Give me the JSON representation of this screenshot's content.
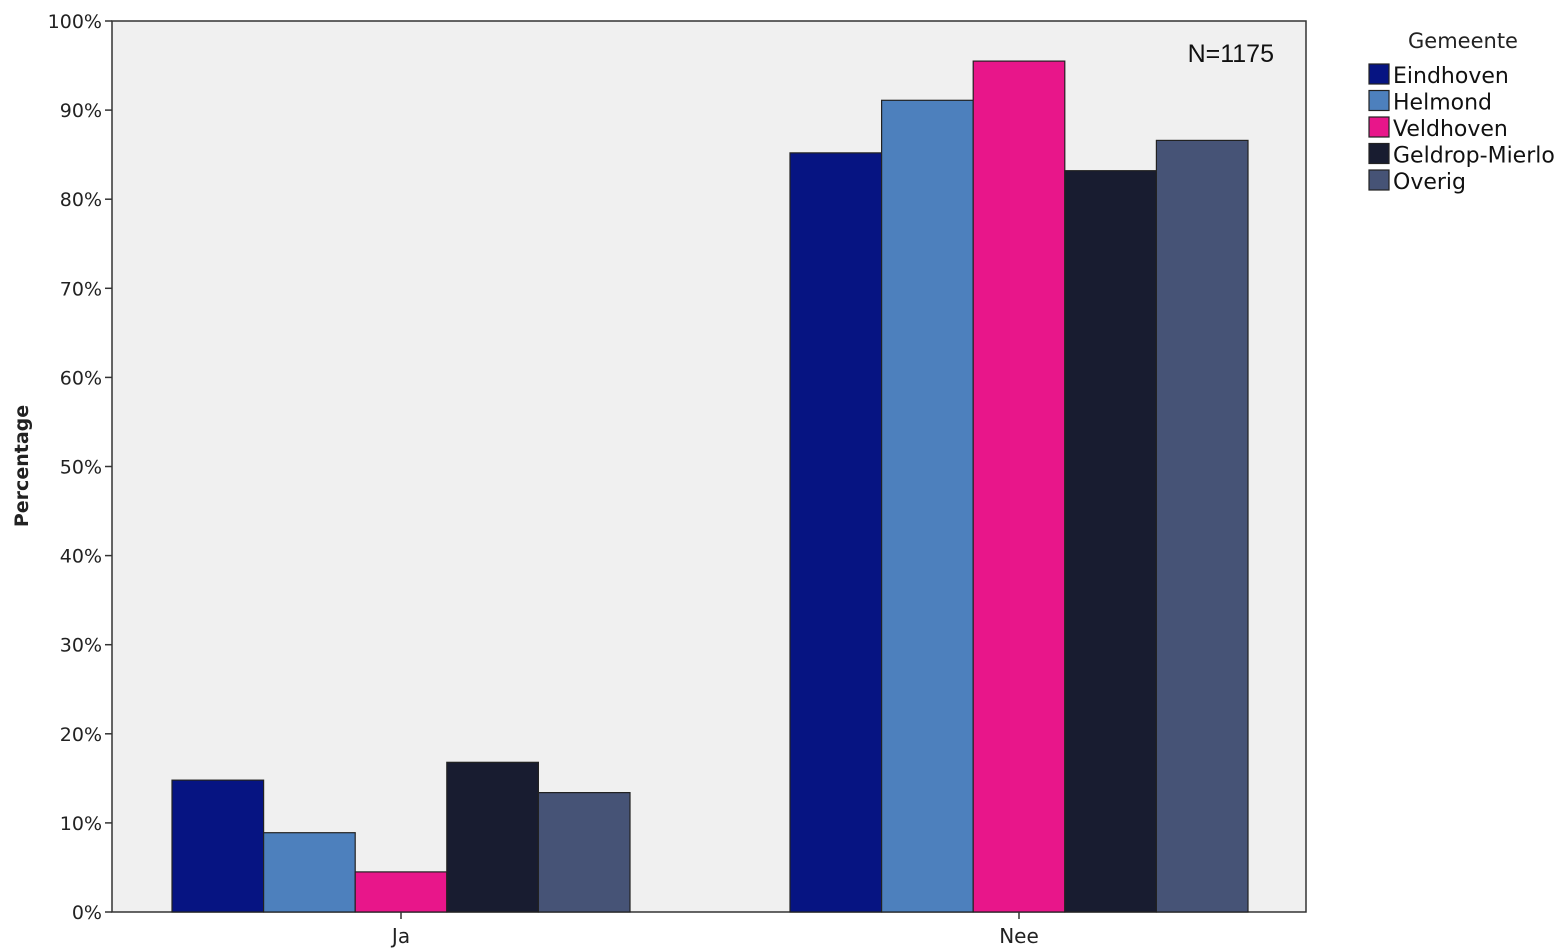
{
  "chart_data": {
    "type": "bar",
    "categories": [
      "Ja",
      "Nee"
    ],
    "series": [
      {
        "name": "Eindhoven",
        "color": "#061482",
        "values": [
          14.8,
          85.2
        ]
      },
      {
        "name": "Helmond",
        "color": "#4d80bd",
        "values": [
          8.9,
          91.1
        ]
      },
      {
        "name": "Veldhoven",
        "color": "#e8168a",
        "values": [
          4.5,
          95.5
        ]
      },
      {
        "name": "Geldrop-Mierlo",
        "color": "#181c30",
        "values": [
          16.8,
          83.2
        ]
      },
      {
        "name": "Overig",
        "color": "#465376",
        "values": [
          13.4,
          86.6
        ]
      }
    ],
    "ylabel": "Percentage",
    "xlabel": "",
    "ylim": [
      0,
      100
    ],
    "yticks": [
      "0%",
      "10%",
      "20%",
      "30%",
      "40%",
      "50%",
      "60%",
      "70%",
      "80%",
      "90%",
      "100%"
    ],
    "legend_title": "Gemeente",
    "legend_position": "right",
    "annotation": "N=1175",
    "plot_background": "#f0f0f0",
    "grid": false
  }
}
